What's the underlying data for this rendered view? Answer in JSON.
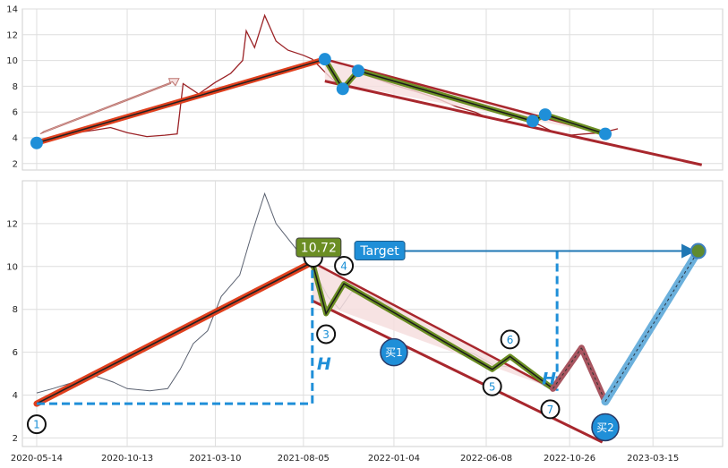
{
  "chart_data": [
    {
      "type": "line",
      "panel": "top",
      "ylim": [
        1.5,
        14
      ],
      "yticks": [
        2,
        4,
        6,
        8,
        10,
        12,
        14
      ],
      "xlim": [
        "2020-04-20",
        "2023-07-10"
      ],
      "grid": true,
      "series": [
        {
          "color": "#9b2226",
          "points": [
            [
              "2020-05-14",
              3.7
            ],
            [
              "2020-06-15",
              4.0
            ],
            [
              "2020-07-20",
              4.4
            ],
            [
              "2020-08-20",
              4.6
            ],
            [
              "2020-09-15",
              4.8
            ],
            [
              "2020-10-13",
              4.4
            ],
            [
              "2020-11-15",
              4.1
            ],
            [
              "2020-12-15",
              4.2
            ],
            [
              "2021-01-05",
              4.3
            ],
            [
              "2021-01-15",
              8.2
            ],
            [
              "2021-02-10",
              7.4
            ],
            [
              "2021-03-10",
              8.3
            ],
            [
              "2021-04-05",
              9.0
            ],
            [
              "2021-04-25",
              10.0
            ],
            [
              "2021-05-01",
              12.3
            ],
            [
              "2021-05-15",
              11.0
            ],
            [
              "2021-06-01",
              13.5
            ],
            [
              "2021-06-20",
              11.5
            ],
            [
              "2021-07-10",
              10.8
            ],
            [
              "2021-08-05",
              10.4
            ],
            [
              "2021-08-20",
              10.1
            ],
            [
              "2021-09-10",
              9.1
            ],
            [
              "2021-10-05",
              8.0
            ],
            [
              "2021-10-25",
              8.6
            ],
            [
              "2021-11-15",
              8.9
            ],
            [
              "2021-12-10",
              8.5
            ],
            [
              "2022-01-04",
              8.1
            ],
            [
              "2022-02-10",
              7.6
            ],
            [
              "2022-03-15",
              7.1
            ],
            [
              "2022-04-20",
              6.4
            ],
            [
              "2022-05-20",
              6.0
            ],
            [
              "2022-06-08",
              5.6
            ],
            [
              "2022-07-05",
              5.3
            ],
            [
              "2022-07-25",
              5.6
            ],
            [
              "2022-08-15",
              5.4
            ],
            [
              "2022-09-05",
              5.0
            ],
            [
              "2022-10-01",
              4.4
            ],
            [
              "2022-10-26",
              4.2
            ],
            [
              "2022-11-20",
              4.3
            ],
            [
              "2022-12-20",
              4.4
            ],
            [
              "2023-01-15",
              4.7
            ]
          ]
        }
      ]
    },
    {
      "type": "line",
      "panel": "bottom",
      "ylim": [
        1.6,
        14
      ],
      "yticks": [
        2,
        4,
        6,
        8,
        10,
        12
      ],
      "xlim": [
        "2020-04-20",
        "2023-07-10"
      ],
      "xtick_labels": [
        "2020-05-14",
        "2020-10-13",
        "2021-03-10",
        "2021-08-05",
        "2022-01-04",
        "2022-06-08",
        "2022-10-26",
        "2023-03-15"
      ],
      "grid": true,
      "series": [
        {
          "color": "#5a6170",
          "points": [
            [
              "2020-05-14",
              4.1
            ],
            [
              "2020-06-10",
              4.3
            ],
            [
              "2020-07-15",
              4.6
            ],
            [
              "2020-08-20",
              4.9
            ],
            [
              "2020-09-20",
              4.6
            ],
            [
              "2020-10-13",
              4.3
            ],
            [
              "2020-11-20",
              4.2
            ],
            [
              "2020-12-20",
              4.3
            ],
            [
              "2021-01-10",
              5.2
            ],
            [
              "2021-02-01",
              6.4
            ],
            [
              "2021-02-25",
              7.0
            ],
            [
              "2021-03-20",
              8.6
            ],
            [
              "2021-04-20",
              9.6
            ],
            [
              "2021-05-10",
              11.5
            ],
            [
              "2021-06-01",
              13.4
            ],
            [
              "2021-06-20",
              12.0
            ],
            [
              "2021-07-10",
              11.3
            ],
            [
              "2021-07-30",
              10.6
            ],
            [
              "2021-08-25",
              9.7
            ],
            [
              "2021-09-15",
              8.6
            ],
            [
              "2021-10-05",
              8.0
            ],
            [
              "2021-10-25",
              8.8
            ],
            [
              "2021-11-20",
              8.7
            ],
            [
              "2021-12-20",
              8.3
            ],
            [
              "2022-01-20",
              7.7
            ],
            [
              "2022-02-20",
              7.1
            ],
            [
              "2022-03-20",
              6.7
            ],
            [
              "2022-04-20",
              6.2
            ],
            [
              "2022-05-20",
              5.9
            ],
            [
              "2022-06-20",
              5.4
            ],
            [
              "2022-07-20",
              5.3
            ],
            [
              "2022-08-20",
              4.8
            ],
            [
              "2022-09-10",
              4.5
            ],
            [
              "2022-09-28",
              4.2
            ]
          ]
        }
      ],
      "points_labels": [
        "1",
        "3",
        "4",
        "5",
        "6",
        "7"
      ],
      "price_label": "10.72",
      "target_label": "Target",
      "height_label": "H",
      "buy_labels": [
        "买1",
        "买2"
      ]
    }
  ]
}
